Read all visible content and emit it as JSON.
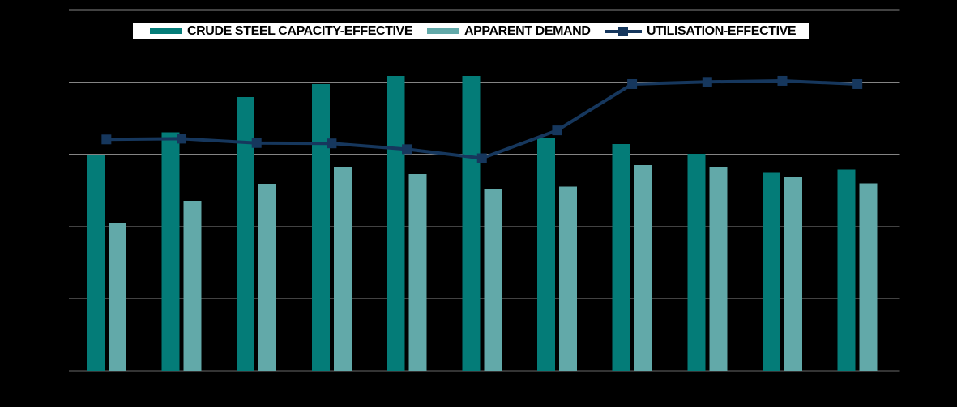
{
  "window": {
    "background": "#000000"
  },
  "legend": {
    "background": "#ffffff",
    "position": "top",
    "items": [
      {
        "label": "CRUDE STEEL CAPACITY-EFFECTIVE",
        "swatch": "bar",
        "color": "#047c78"
      },
      {
        "label": "APPARENT DEMAND",
        "swatch": "bar",
        "color": "#62a9a9"
      },
      {
        "label": "UTILISATION-EFFECTIVE",
        "swatch": "line",
        "color": "#16375d"
      }
    ]
  },
  "chart_data": {
    "type": "combo-bar-line",
    "title": "",
    "xlabel": "",
    "ylabel": "",
    "categories": [
      "",
      "",
      "",
      "",
      "",
      "",
      "",
      "",
      "",
      "",
      ""
    ],
    "x_axis": {
      "tick_labels_visible": false,
      "category_count": 11
    },
    "y_axis": {
      "tick_labels_visible": false,
      "gridline_count": 6,
      "units": "percent of axis height (no labels rendered in image)"
    },
    "ylim": [
      0,
      100
    ],
    "y_gridline_step": 20,
    "grid": true,
    "legend_position": "top-center",
    "series": [
      {
        "name": "CRUDE STEEL CAPACITY-EFFECTIVE",
        "type": "bar",
        "color": "#047c78",
        "values": [
          59.9,
          66.1,
          75.8,
          79.4,
          81.6,
          81.6,
          64.6,
          62.8,
          60.1,
          54.9,
          55.8
        ]
      },
      {
        "name": "APPARENT DEMAND",
        "type": "bar",
        "color": "#62a9a9",
        "values": [
          41.0,
          46.9,
          51.6,
          56.5,
          54.5,
          50.4,
          51.1,
          57.0,
          56.3,
          53.6,
          52.0
        ]
      },
      {
        "name": "UTILISATION-EFFECTIVE",
        "type": "line",
        "color": "#16375d",
        "marker": "square",
        "values": [
          64.1,
          64.3,
          63.1,
          63.0,
          61.4,
          58.9,
          66.6,
          79.4,
          80.0,
          80.3,
          79.4
        ]
      }
    ],
    "colors": {
      "gridline": "#848484",
      "axis": "#686868",
      "plot_background": "#000000"
    }
  }
}
